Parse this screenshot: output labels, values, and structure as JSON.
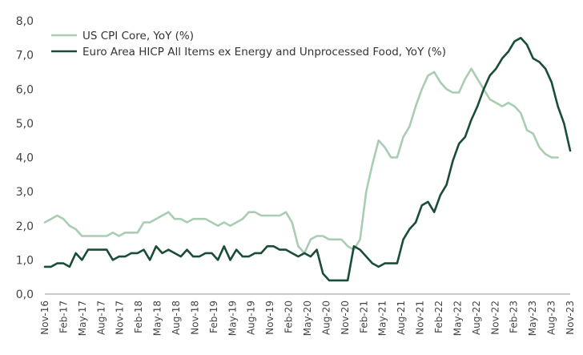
{
  "chart_data": {
    "type": "line",
    "ylim": [
      0,
      8
    ],
    "yticks": [
      "0,0",
      "1,0",
      "2,0",
      "3,0",
      "4,0",
      "5,0",
      "6,0",
      "7,0",
      "8,0"
    ],
    "xticks": [
      "Nov-16",
      "Feb-17",
      "May-17",
      "Aug-17",
      "Nov-17",
      "Feb-18",
      "May-18",
      "Aug-18",
      "Nov-18",
      "Feb-19",
      "May-19",
      "Aug-19",
      "Nov-19",
      "Feb-20",
      "May-20",
      "Aug-20",
      "Nov-20",
      "Feb-21",
      "May-21",
      "Aug-21",
      "Nov-21",
      "Feb-22",
      "May-22",
      "Aug-22",
      "Nov-22",
      "Feb-23",
      "May-23",
      "Aug-23",
      "Nov-23"
    ],
    "legend": "top-left",
    "grid": false,
    "series": [
      {
        "name": "US CPI Core, YoY (%)",
        "color": "#a9cdb2",
        "values": [
          2.1,
          2.2,
          2.3,
          2.2,
          2.0,
          1.9,
          1.7,
          1.7,
          1.7,
          1.7,
          1.7,
          1.8,
          1.7,
          1.8,
          1.8,
          1.8,
          2.1,
          2.1,
          2.2,
          2.3,
          2.4,
          2.2,
          2.2,
          2.1,
          2.2,
          2.2,
          2.2,
          2.1,
          2.0,
          2.1,
          2.0,
          2.1,
          2.2,
          2.4,
          2.4,
          2.3,
          2.3,
          2.3,
          2.3,
          2.4,
          2.1,
          1.4,
          1.2,
          1.6,
          1.7,
          1.7,
          1.6,
          1.6,
          1.6,
          1.4,
          1.3,
          1.6,
          3.0,
          3.8,
          4.5,
          4.3,
          4.0,
          4.0,
          4.6,
          4.9,
          5.5,
          6.0,
          6.4,
          6.5,
          6.2,
          6.0,
          5.9,
          5.9,
          6.3,
          6.6,
          6.3,
          6.0,
          5.7,
          5.6,
          5.5,
          5.6,
          5.5,
          5.3,
          4.8,
          4.7,
          4.3,
          4.1,
          4.0,
          4.0
        ]
      },
      {
        "name": "Euro Area HICP All Items ex Energy and Unprocessed Food, YoY (%)",
        "color": "#1a4d35",
        "values": [
          0.8,
          0.8,
          0.9,
          0.9,
          0.8,
          1.2,
          1.0,
          1.3,
          1.3,
          1.3,
          1.3,
          1.0,
          1.1,
          1.1,
          1.2,
          1.2,
          1.3,
          1.0,
          1.4,
          1.2,
          1.3,
          1.2,
          1.1,
          1.3,
          1.1,
          1.1,
          1.2,
          1.2,
          1.0,
          1.4,
          1.0,
          1.3,
          1.1,
          1.1,
          1.2,
          1.2,
          1.4,
          1.4,
          1.3,
          1.3,
          1.2,
          1.1,
          1.2,
          1.1,
          1.3,
          0.6,
          0.4,
          0.4,
          0.4,
          0.4,
          1.4,
          1.3,
          1.1,
          0.9,
          0.8,
          0.9,
          0.9,
          0.9,
          1.6,
          1.9,
          2.1,
          2.6,
          2.7,
          2.4,
          2.9,
          3.2,
          3.9,
          4.4,
          4.6,
          5.1,
          5.5,
          6.0,
          6.4,
          6.6,
          6.9,
          7.1,
          7.4,
          7.5,
          7.3,
          6.9,
          6.8,
          6.6,
          6.2,
          5.5,
          5.0,
          4.2
        ]
      }
    ]
  }
}
